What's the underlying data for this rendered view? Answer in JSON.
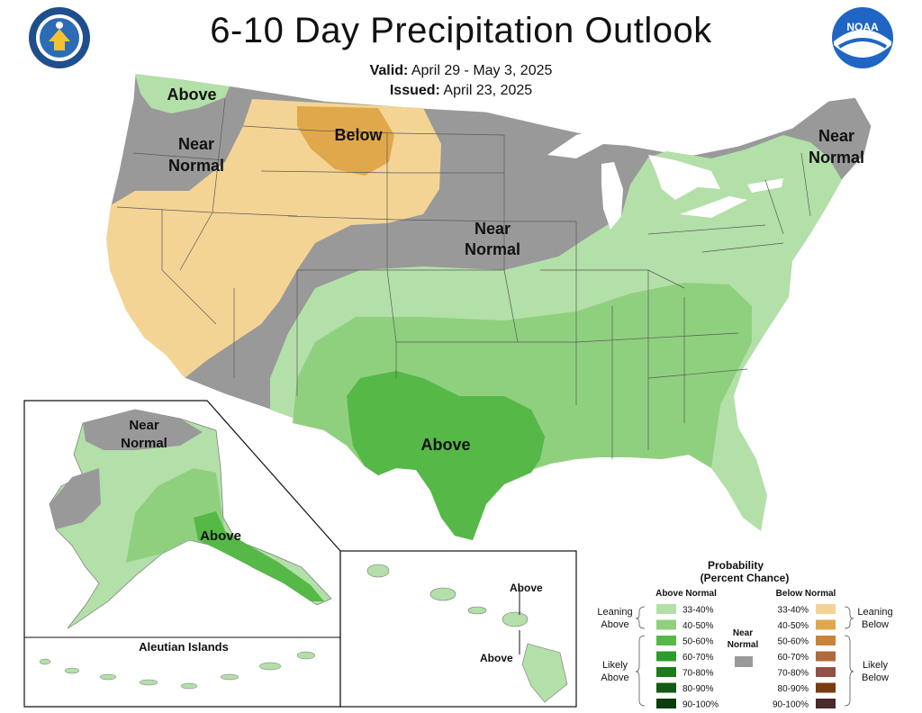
{
  "title": "6-10 Day Precipitation Outlook",
  "valid_label": "Valid:",
  "valid_dates": "April 29 - May 3, 2025",
  "issued_label": "Issued:",
  "issued_date": "April 23, 2025",
  "logos": {
    "left": "department-of-commerce-seal",
    "right": "noaa-logo"
  },
  "noaa_text": "NOAA",
  "regions": {
    "nw_above": "Above",
    "nw_near_1": "Near",
    "nw_near_2": "Normal",
    "west_below": "Below",
    "central_near_1": "Near",
    "central_near_2": "Normal",
    "ne_near_1": "Near",
    "ne_near_2": "Normal",
    "south_above": "Above",
    "ak_near_1": "Near",
    "ak_near_2": "Normal",
    "ak_above": "Above",
    "hi_above_1": "Above",
    "hi_above_2": "Above"
  },
  "aleutian_label": "Aleutian Islands",
  "legend": {
    "title_1": "Probability",
    "title_2": "(Percent Chance)",
    "above_header": "Above Normal",
    "below_header": "Below Normal",
    "near_label_1": "Near",
    "near_label_2": "Normal",
    "leaning_above_1": "Leaning",
    "leaning_above_2": "Above",
    "likely_above_1": "Likely",
    "likely_above_2": "Above",
    "leaning_below_1": "Leaning",
    "leaning_below_2": "Below",
    "likely_below_1": "Likely",
    "likely_below_2": "Below",
    "above_rows": [
      {
        "range": "33-40%",
        "color": "#b3dfa8"
      },
      {
        "range": "40-50%",
        "color": "#8fd07f"
      },
      {
        "range": "50-60%",
        "color": "#55b847"
      },
      {
        "range": "60-70%",
        "color": "#2f9a2d"
      },
      {
        "range": "70-80%",
        "color": "#1d7a1d"
      },
      {
        "range": "80-90%",
        "color": "#145a14"
      },
      {
        "range": "90-100%",
        "color": "#0b3d0b"
      }
    ],
    "below_rows": [
      {
        "range": "33-40%",
        "color": "#f4d495"
      },
      {
        "range": "40-50%",
        "color": "#e0a84a"
      },
      {
        "range": "50-60%",
        "color": "#c9823b"
      },
      {
        "range": "60-70%",
        "color": "#b06a3e"
      },
      {
        "range": "70-80%",
        "color": "#945044"
      },
      {
        "range": "80-90%",
        "color": "#7a3b12"
      },
      {
        "range": "90-100%",
        "color": "#4a2a2a"
      }
    ],
    "near_color": "#999999"
  },
  "colors": {
    "near_normal": "#999999",
    "leaning_below": "#f4d495",
    "below_40_50": "#e0a84a",
    "leaning_above": "#b3dfa8",
    "above_40_50": "#8fd07f",
    "above_50_60": "#55b847"
  }
}
